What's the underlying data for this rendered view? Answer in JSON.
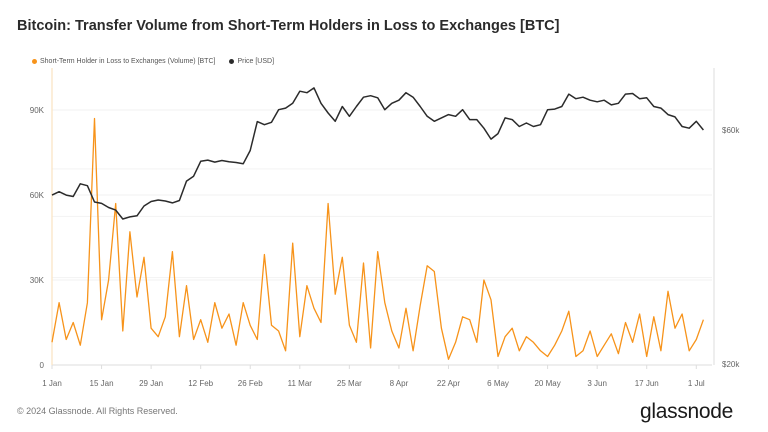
{
  "title": "Bitcoin: Transfer Volume from Short-Term Holders in Loss to Exchanges [BTC]",
  "footer": {
    "copyright": "© 2024 Glassnode. All Rights Reserved.",
    "logo": "glassnode"
  },
  "chart_data": {
    "type": "line",
    "title": "Bitcoin: Transfer Volume from Short-Term Holders in Loss to Exchanges [BTC]",
    "legend_position": "top-left",
    "grid": true,
    "x_start": "2024-01-01",
    "x_step_days": 2,
    "x_ticks": [
      "1 Jan",
      "15 Jan",
      "29 Jan",
      "12 Feb",
      "26 Feb",
      "11 Mar",
      "25 Mar",
      "8 Apr",
      "22 Apr",
      "6 May",
      "20 May",
      "3 Jun",
      "17 Jun",
      "1 Jul"
    ],
    "x_tick_days": [
      0,
      14,
      28,
      42,
      56,
      70,
      84,
      98,
      112,
      126,
      140,
      154,
      168,
      182
    ],
    "y_left": {
      "ticks": [
        "0",
        "30K",
        "60K",
        "90K"
      ],
      "tick_values": [
        0,
        30,
        60,
        90
      ],
      "range": [
        0,
        100
      ],
      "unit": "K BTC"
    },
    "y_right": {
      "ticks": [
        "$20k",
        "$60k"
      ],
      "tick_values": [
        20,
        60
      ],
      "range": [
        20,
        80
      ],
      "scale": "log",
      "unit": "k USD"
    },
    "series": [
      {
        "name": "Short-Term Holder in Loss to Exchanges (Volume) [BTC]",
        "color": "#f7931a",
        "axis": "left",
        "values": [
          8,
          22,
          9,
          15,
          7,
          22,
          87,
          16,
          30,
          57,
          12,
          47,
          24,
          38,
          13,
          10,
          17,
          40,
          10,
          28,
          9,
          16,
          8,
          22,
          13,
          18,
          7,
          22,
          14,
          9,
          39,
          14,
          12,
          5,
          43,
          10,
          28,
          20,
          15,
          57,
          25,
          38,
          14,
          8,
          36,
          6,
          40,
          22,
          12,
          6,
          20,
          5,
          21,
          35,
          33,
          13,
          2,
          8,
          17,
          16,
          8,
          30,
          23,
          3,
          10,
          13,
          5,
          10,
          8,
          5,
          3,
          7,
          12,
          19,
          3,
          5,
          12,
          3,
          7,
          11,
          4,
          15,
          8,
          18,
          3,
          17,
          5,
          26,
          13,
          18,
          5,
          9,
          16
        ]
      },
      {
        "name": "Price [USD]",
        "color": "#2b2b2b",
        "axis": "right",
        "values": [
          44.2,
          44.9,
          44.2,
          43.9,
          46.6,
          46.2,
          42.8,
          42.5,
          41.7,
          41.2,
          39.5,
          39.9,
          40.1,
          42.0,
          42.9,
          43.2,
          43.0,
          42.6,
          43.1,
          47.2,
          48.3,
          51.8,
          52.1,
          51.6,
          52.0,
          51.7,
          51.5,
          51.2,
          54.5,
          62.4,
          61.5,
          62.2,
          66,
          66.5,
          68,
          72,
          71.5,
          73.1,
          68,
          65,
          62.5,
          67,
          64,
          67,
          70,
          70.5,
          69.8,
          66,
          68,
          69,
          71.5,
          70,
          67,
          64,
          62.5,
          63.5,
          64.5,
          64,
          66,
          63,
          63,
          60.5,
          57.5,
          59,
          63.5,
          63,
          61,
          62,
          61,
          61.5,
          66,
          66.2,
          67,
          71,
          69.5,
          70,
          69,
          68.5,
          69,
          67.5,
          68,
          71,
          71.2,
          69.5,
          69.8,
          67,
          66.5,
          64.5,
          63.8,
          61,
          60.5,
          62.5,
          60
        ]
      }
    ]
  }
}
